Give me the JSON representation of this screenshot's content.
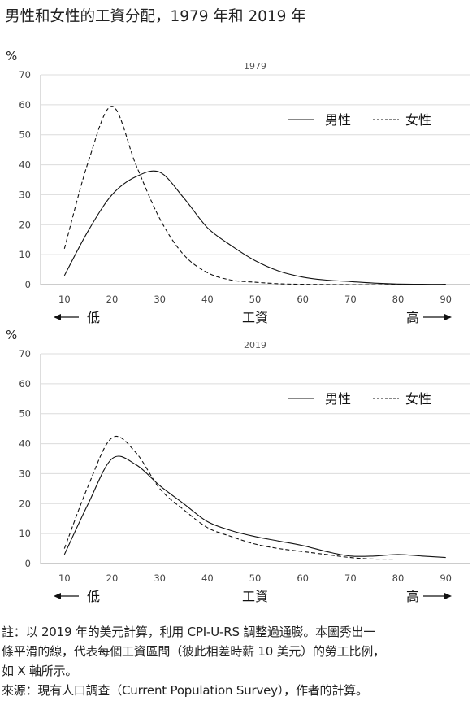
{
  "title": "男性和女性的工資分配，1979 年和 2019 年",
  "chart_data": [
    {
      "type": "line",
      "title": "1979",
      "ylabel": "%",
      "ylim": [
        0,
        70
      ],
      "xlim": [
        5,
        95
      ],
      "yticks": [
        0,
        10,
        20,
        30,
        40,
        50,
        60,
        70
      ],
      "xticks": [
        10,
        20,
        30,
        40,
        50,
        60,
        70,
        80,
        90
      ],
      "xlabel": "工資",
      "axis_low": "低",
      "axis_high": "高",
      "grid": true,
      "legend_position": "top-right",
      "series": [
        {
          "name": "男性",
          "style": "solid",
          "x": [
            10,
            15,
            20,
            25,
            30,
            35,
            40,
            45,
            50,
            55,
            60,
            65,
            70,
            75,
            80,
            85,
            90
          ],
          "values": [
            3,
            18,
            30,
            36,
            37.5,
            29,
            19,
            13,
            8,
            4.5,
            2.5,
            1.5,
            1,
            0.5,
            0.2,
            0.1,
            0.1
          ]
        },
        {
          "name": "女性",
          "style": "dashed",
          "x": [
            10,
            15,
            20,
            25,
            30,
            35,
            40,
            45,
            50,
            55,
            60,
            70,
            80,
            90
          ],
          "values": [
            12,
            41,
            59.5,
            40,
            22,
            10,
            4,
            1.5,
            0.8,
            0.3,
            0.1,
            0,
            0,
            0
          ]
        }
      ]
    },
    {
      "type": "line",
      "title": "2019",
      "ylabel": "%",
      "ylim": [
        0,
        70
      ],
      "xlim": [
        5,
        95
      ],
      "yticks": [
        0,
        10,
        20,
        30,
        40,
        50,
        60,
        70
      ],
      "xticks": [
        10,
        20,
        30,
        40,
        50,
        60,
        70,
        80,
        90
      ],
      "xlabel": "工資",
      "axis_low": "低",
      "axis_high": "高",
      "grid": true,
      "legend_position": "top-right",
      "series": [
        {
          "name": "男性",
          "style": "solid",
          "x": [
            10,
            15,
            20,
            25,
            30,
            35,
            40,
            45,
            50,
            55,
            60,
            65,
            70,
            75,
            80,
            85,
            90
          ],
          "values": [
            3,
            20,
            35,
            33,
            26,
            20,
            14,
            11,
            9,
            7.5,
            6,
            4,
            2.5,
            2.5,
            3,
            2.5,
            2
          ]
        },
        {
          "name": "女性",
          "style": "dashed",
          "x": [
            10,
            15,
            20,
            25,
            30,
            35,
            40,
            45,
            50,
            55,
            60,
            65,
            70,
            75,
            80,
            85,
            90
          ],
          "values": [
            5,
            26,
            42,
            37,
            25,
            18,
            12,
            9,
            6.5,
            5,
            4,
            3,
            2,
            1.5,
            1.5,
            1.5,
            1.5
          ]
        }
      ]
    }
  ],
  "notes": [
    "註：以 2019 年的美元計算，利用 CPI-U-RS 調整過通膨。本圖秀出一",
    "條平滑的線，代表每個工資區間（彼此相差時薪 10 美元）的勞工比例，",
    "如 X 軸所示。",
    "來源：現有人口調查（Current Population Survey），作者的計算。"
  ]
}
